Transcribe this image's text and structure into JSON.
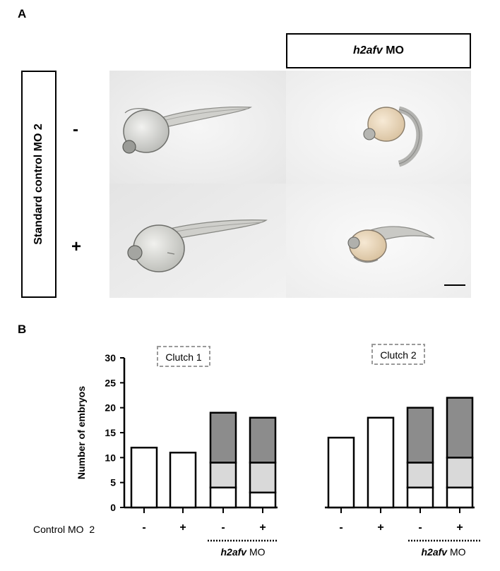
{
  "figure": {
    "panel_a": {
      "letter": "A",
      "column_header": {
        "gene": "h2afv",
        "suffix": " MO"
      },
      "row_header": "Standard control MO 2",
      "row_signs": [
        "-",
        "+"
      ]
    },
    "panel_b": {
      "letter": "B"
    }
  },
  "chart_data": {
    "type": "bar",
    "stacked": true,
    "ylabel": "Number of embryos",
    "ylim": [
      0,
      30
    ],
    "yticks": [
      0,
      5,
      10,
      15,
      20,
      25,
      30
    ],
    "clutches": [
      "Clutch 1",
      "Clutch 2"
    ],
    "x_row_label": "Control MO  2",
    "x_signs": [
      "-",
      "+",
      "-",
      "+",
      "-",
      "+",
      "-",
      "+"
    ],
    "group_label": {
      "gene": "h2afv",
      "suffix": " MO"
    },
    "segment_colors": [
      "#ffffff",
      "#d9d9d9",
      "#8c8c8c"
    ],
    "bars": [
      {
        "clutch": 1,
        "sign": "-",
        "total": 12,
        "segments": [
          12,
          0,
          0
        ]
      },
      {
        "clutch": 1,
        "sign": "+",
        "total": 11,
        "segments": [
          11,
          0,
          0
        ]
      },
      {
        "clutch": 1,
        "sign": "-",
        "total": 19,
        "segments": [
          4,
          5,
          10
        ]
      },
      {
        "clutch": 1,
        "sign": "+",
        "total": 18,
        "segments": [
          3,
          6,
          9
        ]
      },
      {
        "clutch": 2,
        "sign": "-",
        "total": 14,
        "segments": [
          14,
          0,
          0
        ]
      },
      {
        "clutch": 2,
        "sign": "+",
        "total": 18,
        "segments": [
          18,
          0,
          0
        ]
      },
      {
        "clutch": 2,
        "sign": "-",
        "total": 20,
        "segments": [
          4,
          5,
          11
        ]
      },
      {
        "clutch": 2,
        "sign": "+",
        "total": 22,
        "segments": [
          4,
          6,
          12
        ]
      }
    ]
  }
}
